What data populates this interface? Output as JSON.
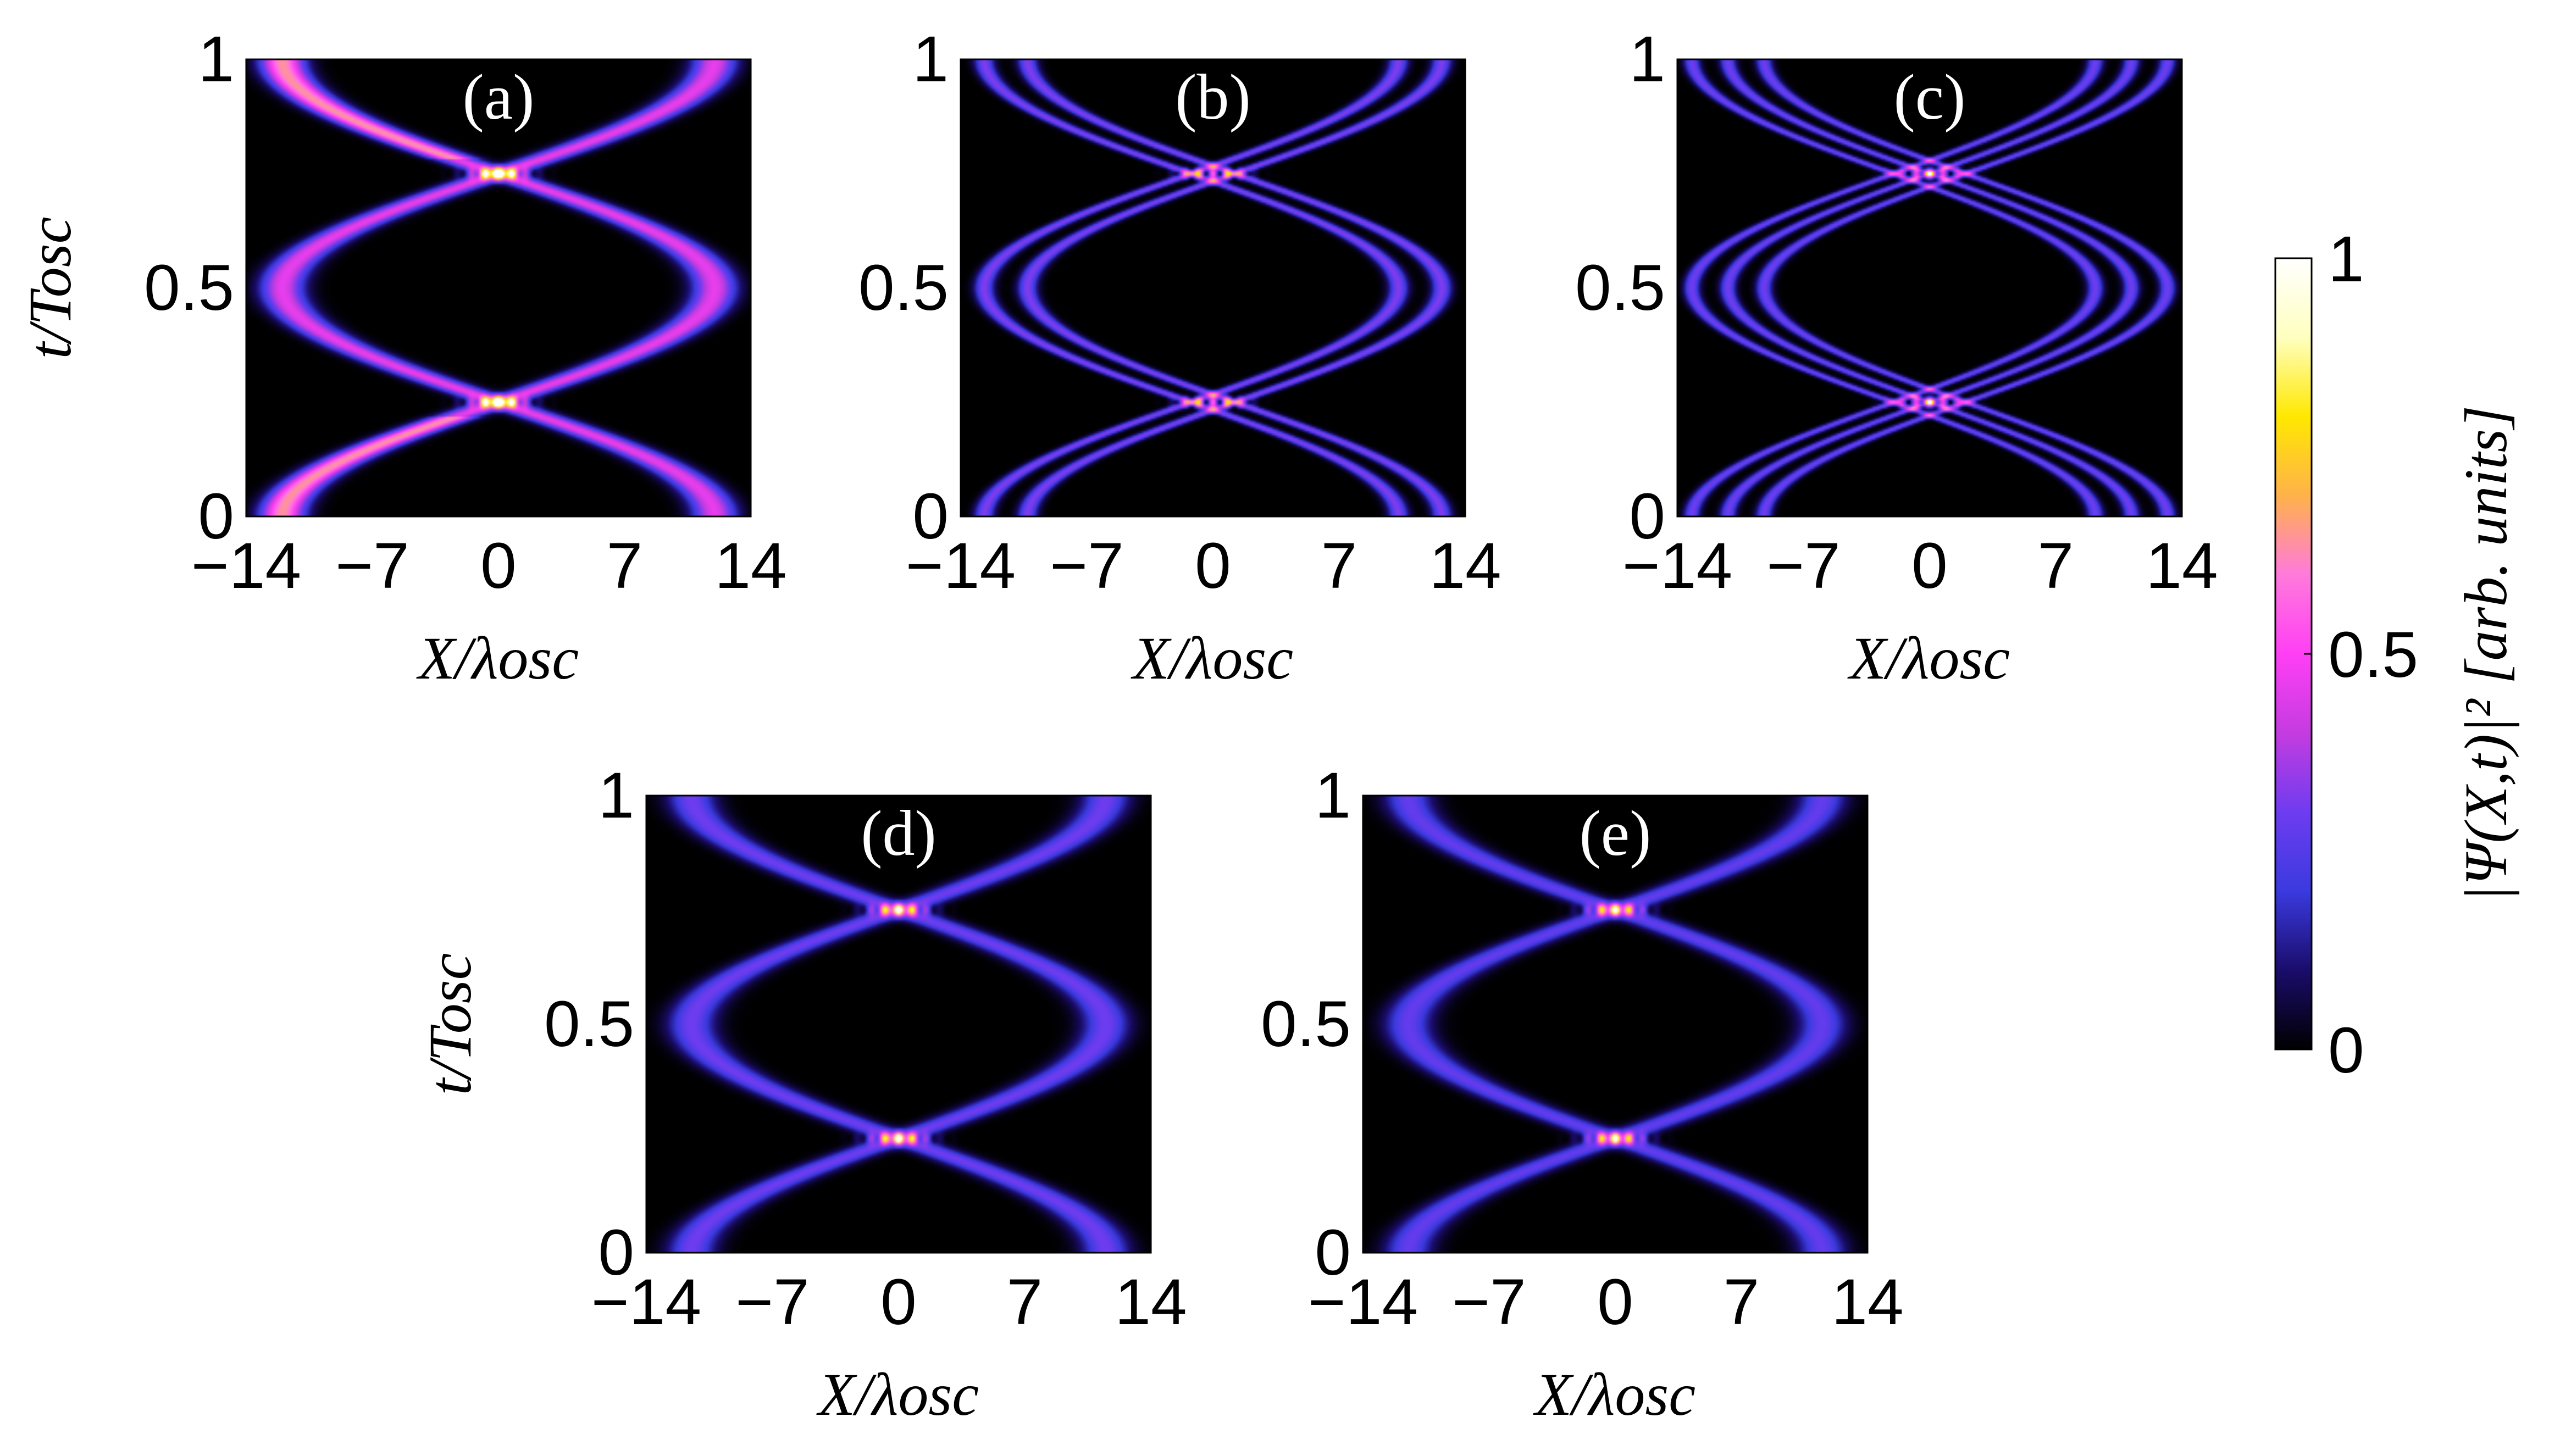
{
  "chart_data": [
    {
      "type": "heatmap",
      "panel_label": "(a)",
      "xlabel": "X/λosc",
      "ylabel": "t/Tosc",
      "xlim": [
        -14,
        14
      ],
      "ylim": [
        0,
        1
      ],
      "x_ticks": [
        "−14",
        "−7",
        "0",
        "7",
        "14"
      ],
      "y_ticks": [
        "0",
        "0.5",
        "1"
      ],
      "amplitude": 12.0,
      "soliton_offsets": [
        0
      ],
      "branches": [
        1,
        -1
      ],
      "brightness": 0.46,
      "width": 1.2
    },
    {
      "type": "heatmap",
      "panel_label": "(b)",
      "xlabel": "X/λosc",
      "ylabel": "",
      "xlim": [
        -14,
        14
      ],
      "ylim": [
        0,
        1
      ],
      "x_ticks": [
        "−14",
        "−7",
        "0",
        "7",
        "14"
      ],
      "y_ticks": [
        "0",
        "0.5",
        "1"
      ],
      "amplitude": 11.5,
      "soliton_offsets": [
        -1.2,
        1.2
      ],
      "branches": [
        1,
        -1
      ],
      "brightness": 0.32,
      "width": 0.55
    },
    {
      "type": "heatmap",
      "panel_label": "(c)",
      "xlabel": "X/λosc",
      "ylabel": "",
      "xlim": [
        -14,
        14
      ],
      "ylim": [
        0,
        1
      ],
      "x_ticks": [
        "−14",
        "−7",
        "0",
        "7",
        "14"
      ],
      "y_ticks": [
        "0",
        "0.5",
        "1"
      ],
      "amplitude": 11.2,
      "soliton_offsets": [
        -2.0,
        0,
        2.0
      ],
      "branches": [
        1,
        -1
      ],
      "brightness": 0.3,
      "width": 0.45
    },
    {
      "type": "heatmap",
      "panel_label": "(d)",
      "xlabel": "X/λosc",
      "ylabel": "t/Tosc",
      "xlim": [
        -14,
        14
      ],
      "ylim": [
        0,
        1
      ],
      "x_ticks": [
        "−14",
        "−7",
        "0",
        "7",
        "14"
      ],
      "y_ticks": [
        "0",
        "0.5",
        "1"
      ],
      "amplitude": 11.5,
      "soliton_offsets": [
        0
      ],
      "branches": [
        1,
        -1
      ],
      "brightness": 0.3,
      "width": 1.3
    },
    {
      "type": "heatmap",
      "panel_label": "(e)",
      "xlabel": "X/λosc",
      "ylabel": "",
      "xlim": [
        -14,
        14
      ],
      "ylim": [
        0,
        1
      ],
      "x_ticks": [
        "−14",
        "−7",
        "0",
        "7",
        "14"
      ],
      "y_ticks": [
        "0",
        "0.5",
        "1"
      ],
      "amplitude": 11.5,
      "soliton_offsets": [
        0
      ],
      "branches": [
        1,
        -1
      ],
      "brightness": 0.28,
      "width": 1.3
    }
  ],
  "colorbar": {
    "label": "|Ψ(X,t)|² [arb. units]",
    "ticks": [
      "0",
      "0.5",
      "1"
    ],
    "range": [
      0,
      1
    ],
    "colormap": [
      "#000000",
      "#1a0c6b",
      "#3a3adf",
      "#6e3cf0",
      "#c43ce0",
      "#ff3ff5",
      "#ff7adb",
      "#ffb24a",
      "#ffe800",
      "#ffffc0",
      "#ffffff"
    ]
  }
}
